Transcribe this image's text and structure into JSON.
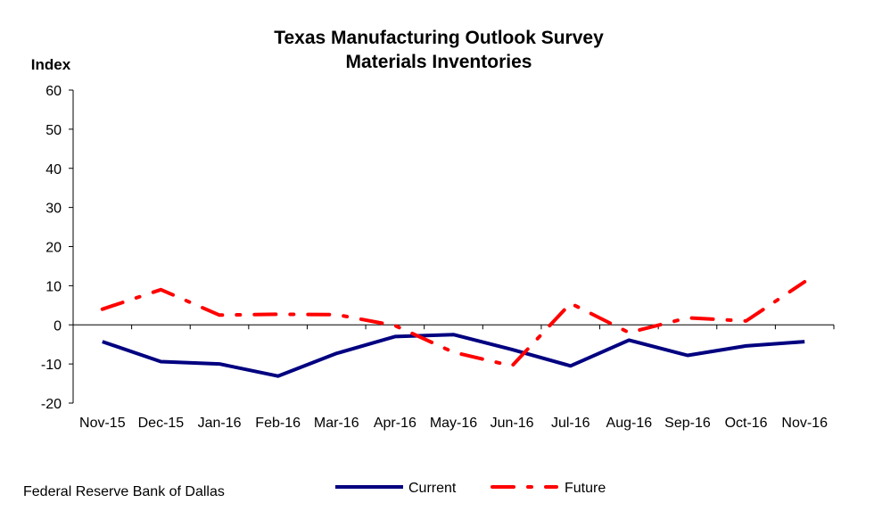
{
  "chart_data": {
    "type": "line",
    "title": "Texas Manufacturing Outlook Survey",
    "subtitle": "Materials Inventories",
    "ylabel": "Index",
    "xlabel": "",
    "categories": [
      "Nov-15",
      "Dec-15",
      "Jan-16",
      "Feb-16",
      "Mar-16",
      "Apr-16",
      "May-16",
      "Jun-16",
      "Jul-16",
      "Aug-16",
      "Sep-16",
      "Oct-16",
      "Nov-16"
    ],
    "ylim": [
      -20,
      60
    ],
    "yticks": [
      -20,
      -10,
      0,
      10,
      20,
      30,
      40,
      50,
      60
    ],
    "grid": false,
    "legend_position": "bottom",
    "series": [
      {
        "name": "Current",
        "color": "#000080",
        "style": "solid",
        "values": [
          -4.3,
          -9.4,
          -10.0,
          -13.1,
          -7.3,
          -3.0,
          -2.5,
          -6.3,
          -10.5,
          -3.9,
          -7.8,
          -5.4,
          -4.3
        ]
      },
      {
        "name": "Future",
        "color": "#FF0000",
        "style": "dash-dot",
        "values": [
          4.0,
          9.0,
          2.5,
          2.7,
          2.6,
          -0.2,
          -7.0,
          -10.5,
          5.5,
          -2.0,
          1.8,
          1.0,
          11.0
        ]
      }
    ]
  },
  "footer": {
    "source": "Federal Reserve Bank of Dallas"
  }
}
